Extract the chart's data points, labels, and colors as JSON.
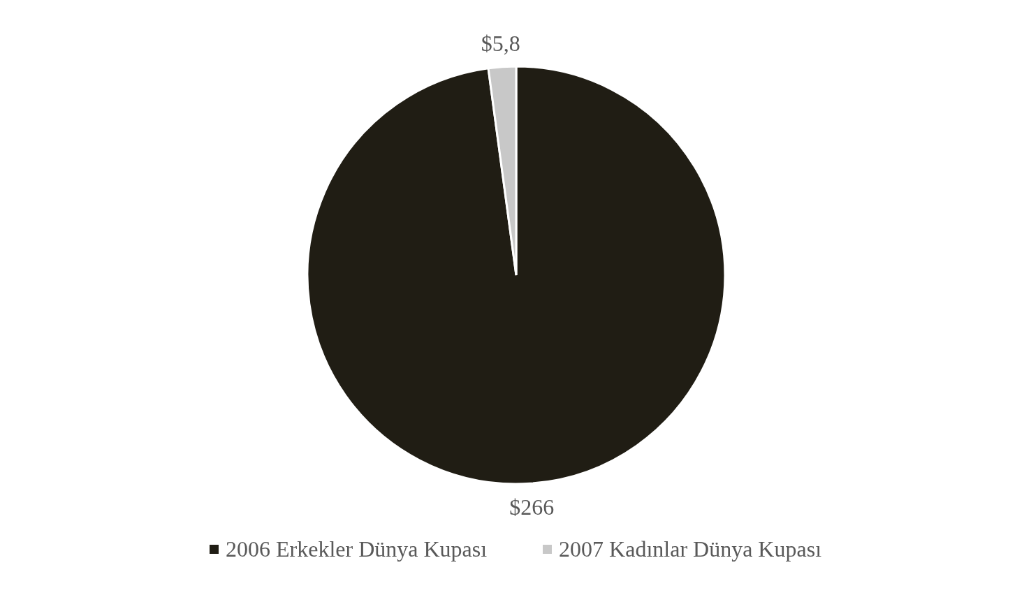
{
  "chart_data": {
    "type": "pie",
    "categories": [
      "2006 Erkekler Dünya Kupası",
      "2007 Kadınlar Dünya Kupası"
    ],
    "values": [
      266,
      5.8
    ],
    "colors": [
      "#201d14",
      "#c8c8c8"
    ],
    "value_labels": [
      "$266",
      "$5,8"
    ],
    "legend": "bottom"
  }
}
